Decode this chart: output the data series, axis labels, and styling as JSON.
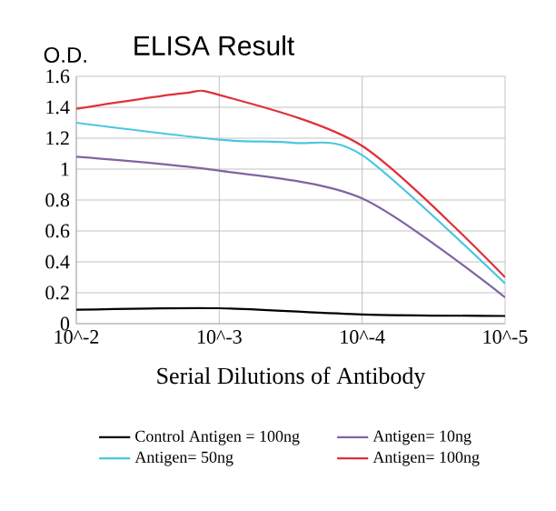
{
  "chart_data": {
    "type": "line",
    "title": "ELISA Result",
    "xlabel": "Serial Dilutions of Antibody",
    "ylabel": "O.D.",
    "xlim": [
      0.01,
      1e-05
    ],
    "log": "x",
    "xticks": [
      {
        "value": 0.01,
        "label": "10^-2"
      },
      {
        "value": 0.001,
        "label": "10^-3"
      },
      {
        "value": 0.0001,
        "label": "10^-4"
      },
      {
        "value": 1e-05,
        "label": "10^-5"
      }
    ],
    "ylim": [
      0,
      1.6
    ],
    "yticks": [
      0,
      0.2,
      0.4,
      0.6,
      0.8,
      1,
      1.2,
      1.4,
      1.6
    ],
    "grid": true,
    "legend": "bottom",
    "marker": "none",
    "line_style": "solid",
    "series": [
      {
        "name": "Control Antigen = 100ng",
        "color": "#000000",
        "x": [
          0.01,
          0.001,
          0.0001,
          1e-05
        ],
        "values": [
          0.09,
          0.1,
          0.06,
          0.05
        ]
      },
      {
        "name": "Antigen= 10ng",
        "color": "#8064a2",
        "x": [
          0.01,
          0.001,
          0.0001,
          1e-05
        ],
        "values": [
          1.08,
          0.99,
          0.81,
          0.17
        ]
      },
      {
        "name": "Antigen= 50ng",
        "color": "#4bc6e0",
        "x": [
          0.01,
          0.001,
          0.0003,
          0.0001,
          1e-05
        ],
        "values": [
          1.3,
          1.19,
          1.17,
          1.09,
          0.26
        ]
      },
      {
        "name": "Antigen= 100ng",
        "color": "#e0303a",
        "x": [
          0.01,
          0.0018,
          0.001,
          0.0001,
          1e-05
        ],
        "values": [
          1.39,
          1.49,
          1.48,
          1.15,
          0.3
        ]
      }
    ]
  }
}
